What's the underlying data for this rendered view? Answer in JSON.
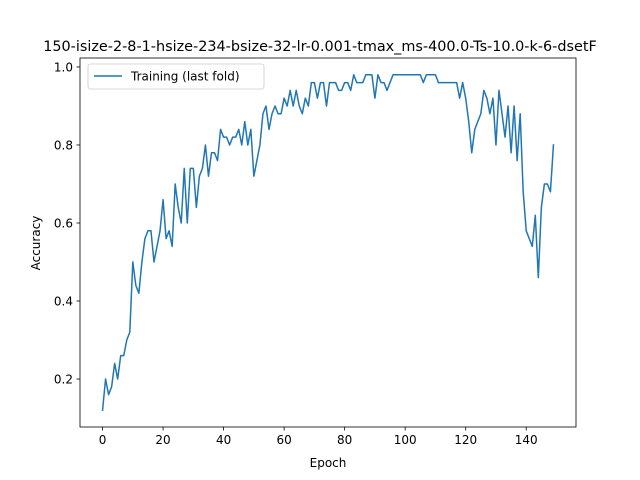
{
  "chart_data": {
    "type": "line",
    "title": "150-isize-2-8-1-hsize-234-bsize-32-lr-0.001-tmax_ms-400.0-Ts-10.0-k-6-dsetF",
    "xlabel": "Epoch",
    "ylabel": "Accuracy",
    "xlim": [
      -7.45,
      156.45
    ],
    "ylim": [
      0.077,
      1.023
    ],
    "xticks": [
      0,
      20,
      40,
      60,
      80,
      100,
      120,
      140
    ],
    "yticks": [
      0.2,
      0.4,
      0.6,
      0.8,
      1.0
    ],
    "xtick_labels": [
      "0",
      "20",
      "40",
      "60",
      "80",
      "100",
      "120",
      "140"
    ],
    "ytick_labels": [
      "0.2",
      "0.4",
      "0.6",
      "0.8",
      "1.0"
    ],
    "grid": false,
    "legend_position": "top-left",
    "series": [
      {
        "name": "Training (last fold)",
        "color": "#1f77b4",
        "x": [
          0,
          1,
          2,
          3,
          4,
          5,
          6,
          7,
          8,
          9,
          10,
          11,
          12,
          13,
          14,
          15,
          16,
          17,
          18,
          19,
          20,
          21,
          22,
          23,
          24,
          25,
          26,
          27,
          28,
          29,
          30,
          31,
          32,
          33,
          34,
          35,
          36,
          37,
          38,
          39,
          40,
          41,
          42,
          43,
          44,
          45,
          46,
          47,
          48,
          49,
          50,
          51,
          52,
          53,
          54,
          55,
          56,
          57,
          58,
          59,
          60,
          61,
          62,
          63,
          64,
          65,
          66,
          67,
          68,
          69,
          70,
          71,
          72,
          73,
          74,
          75,
          76,
          77,
          78,
          79,
          80,
          81,
          82,
          83,
          84,
          85,
          86,
          87,
          88,
          89,
          90,
          91,
          92,
          93,
          94,
          95,
          96,
          97,
          98,
          99,
          100,
          101,
          102,
          103,
          104,
          105,
          106,
          107,
          108,
          109,
          110,
          111,
          112,
          113,
          114,
          115,
          116,
          117,
          118,
          119,
          120,
          121,
          122,
          123,
          124,
          125,
          126,
          127,
          128,
          129,
          130,
          131,
          132,
          133,
          134,
          135,
          136,
          137,
          138,
          139,
          140,
          141,
          142,
          143,
          144,
          145,
          146,
          147,
          148,
          149
        ],
        "y": [
          0.12,
          0.2,
          0.16,
          0.18,
          0.24,
          0.2,
          0.26,
          0.26,
          0.3,
          0.32,
          0.5,
          0.44,
          0.42,
          0.5,
          0.56,
          0.58,
          0.58,
          0.5,
          0.54,
          0.58,
          0.66,
          0.56,
          0.58,
          0.54,
          0.7,
          0.64,
          0.6,
          0.74,
          0.6,
          0.74,
          0.74,
          0.64,
          0.72,
          0.74,
          0.8,
          0.72,
          0.78,
          0.78,
          0.76,
          0.84,
          0.82,
          0.82,
          0.8,
          0.82,
          0.82,
          0.84,
          0.8,
          0.86,
          0.8,
          0.84,
          0.72,
          0.76,
          0.8,
          0.88,
          0.9,
          0.84,
          0.88,
          0.9,
          0.88,
          0.88,
          0.92,
          0.9,
          0.94,
          0.9,
          0.94,
          0.9,
          0.88,
          0.92,
          0.9,
          0.96,
          0.96,
          0.92,
          0.96,
          0.96,
          0.9,
          0.96,
          0.96,
          0.96,
          0.94,
          0.94,
          0.96,
          0.96,
          0.94,
          0.98,
          0.96,
          0.96,
          0.96,
          0.98,
          0.98,
          0.98,
          0.92,
          0.98,
          0.96,
          0.96,
          0.94,
          0.96,
          0.98,
          0.98,
          0.98,
          0.98,
          0.98,
          0.98,
          0.98,
          0.98,
          0.98,
          0.98,
          0.96,
          0.98,
          0.98,
          0.98,
          0.98,
          0.96,
          0.96,
          0.96,
          0.96,
          0.96,
          0.96,
          0.96,
          0.92,
          0.96,
          0.92,
          0.86,
          0.78,
          0.84,
          0.86,
          0.88,
          0.94,
          0.92,
          0.88,
          0.92,
          0.8,
          0.94,
          0.88,
          0.82,
          0.9,
          0.78,
          0.9,
          0.76,
          0.88,
          0.68,
          0.58,
          0.56,
          0.54,
          0.62,
          0.46,
          0.64,
          0.7,
          0.7,
          0.68,
          0.8
        ]
      }
    ]
  }
}
